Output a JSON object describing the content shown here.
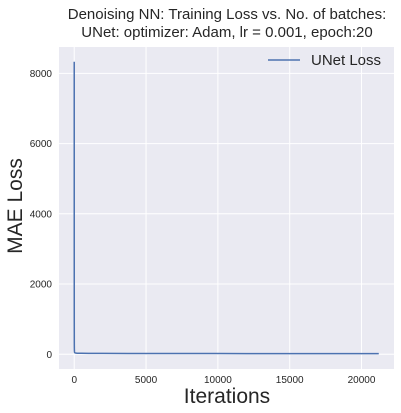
{
  "chart_data": {
    "type": "line",
    "title_line1": "Denoising NN: Training Loss vs. No. of batches:",
    "title_line2": "UNet: optimizer: Adam, lr = 0.001, epoch:20",
    "xlabel": "Iterations",
    "ylabel": "MAE Loss",
    "xlim": [
      -1060,
      22260
    ],
    "ylim": [
      -420,
      8750
    ],
    "xticks": [
      0,
      5000,
      10000,
      15000,
      20000
    ],
    "yticks": [
      0,
      2000,
      4000,
      6000,
      8000
    ],
    "grid": true,
    "legend_position": "top-right",
    "series": [
      {
        "name": "UNet Loss",
        "color": "#4c72b0",
        "x": [
          0,
          1,
          3,
          6,
          10,
          15,
          25,
          50,
          100,
          200,
          500,
          1000,
          2000,
          4000,
          6000,
          8000,
          10000,
          12000,
          14000,
          16000,
          18000,
          20000,
          21200
        ],
        "y": [
          8330,
          3000,
          900,
          300,
          150,
          80,
          50,
          40,
          35,
          30,
          28,
          25,
          24,
          22,
          21,
          20,
          20,
          19,
          19,
          18,
          18,
          18,
          18
        ]
      }
    ]
  }
}
